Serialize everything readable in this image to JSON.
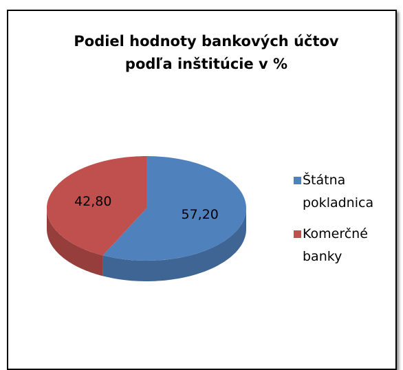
{
  "chart_data": {
    "type": "pie3d",
    "title": "Podiel hodnoty bankových účtov podľa inštitúcie v %",
    "categories": [
      "Štátna pokladnica",
      "Komerčné banky"
    ],
    "values": [
      57.2,
      42.8
    ],
    "value_labels": [
      "57,20",
      "42,80"
    ],
    "colors": [
      "#4f81bd",
      "#c0504d"
    ],
    "legend": "right"
  }
}
